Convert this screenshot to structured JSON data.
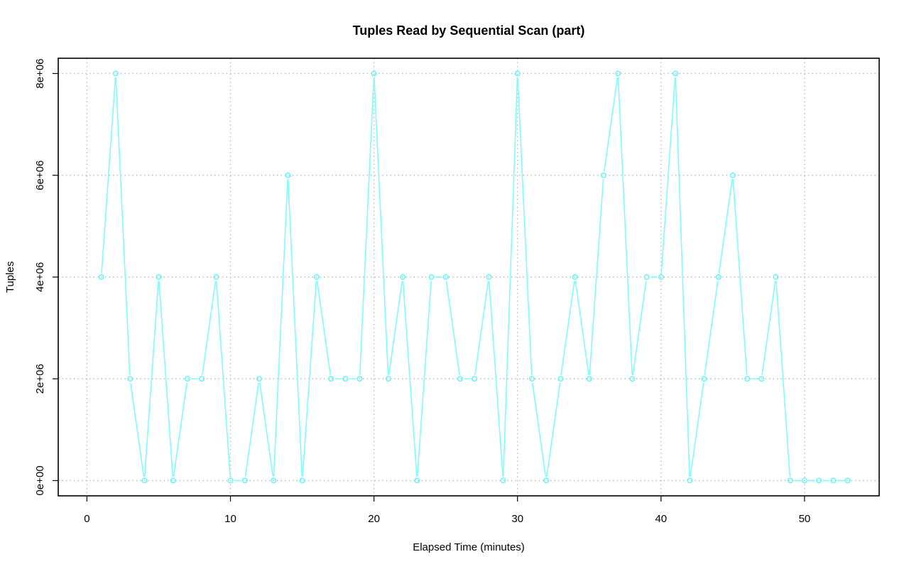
{
  "chart_data": {
    "type": "line",
    "title": "Tuples Read by Sequential Scan (part)",
    "xlabel": "Elapsed Time (minutes)",
    "ylabel": "Tuples",
    "xlim": [
      -2,
      55.2
    ],
    "ylim": [
      -300000,
      8300000
    ],
    "x_ticks": [
      0,
      10,
      20,
      30,
      40,
      50
    ],
    "x_tick_labels": [
      "0",
      "10",
      "20",
      "30",
      "40",
      "50"
    ],
    "y_ticks": [
      0,
      2000000,
      4000000,
      6000000,
      8000000
    ],
    "y_tick_labels": [
      "0e+00",
      "2e+06",
      "4e+06",
      "6e+06",
      "8e+06"
    ],
    "grid": true,
    "marker": "open-circle",
    "line_style": "line-gap-at-points",
    "series": [
      {
        "color": "#7ffcff",
        "x": [
          1,
          2,
          3,
          4,
          5,
          6,
          7,
          8,
          9,
          10,
          11,
          12,
          13,
          14,
          15,
          16,
          17,
          18,
          19,
          20,
          21,
          22,
          23,
          24,
          25,
          26,
          27,
          28,
          29,
          30,
          31,
          32,
          33,
          34,
          35,
          36,
          37,
          38,
          39,
          40,
          41,
          42,
          43,
          44,
          45,
          46,
          47,
          48,
          49,
          50,
          51,
          52,
          53
        ],
        "y": [
          4000000,
          8000000,
          2000000,
          0,
          4000000,
          0,
          2000000,
          2000000,
          4000000,
          0,
          0,
          2000000,
          0,
          6000000,
          0,
          4000000,
          2000000,
          2000000,
          2000000,
          8000000,
          2000000,
          4000000,
          0,
          4000000,
          4000000,
          2000000,
          2000000,
          4000000,
          0,
          8000000,
          2000000,
          0,
          2000000,
          4000000,
          2000000,
          6000000,
          8000000,
          2000000,
          4000000,
          4000000,
          8000000,
          0,
          2000000,
          4000000,
          6000000,
          2000000,
          2000000,
          4000000,
          0,
          0,
          0,
          0,
          0
        ]
      }
    ]
  }
}
